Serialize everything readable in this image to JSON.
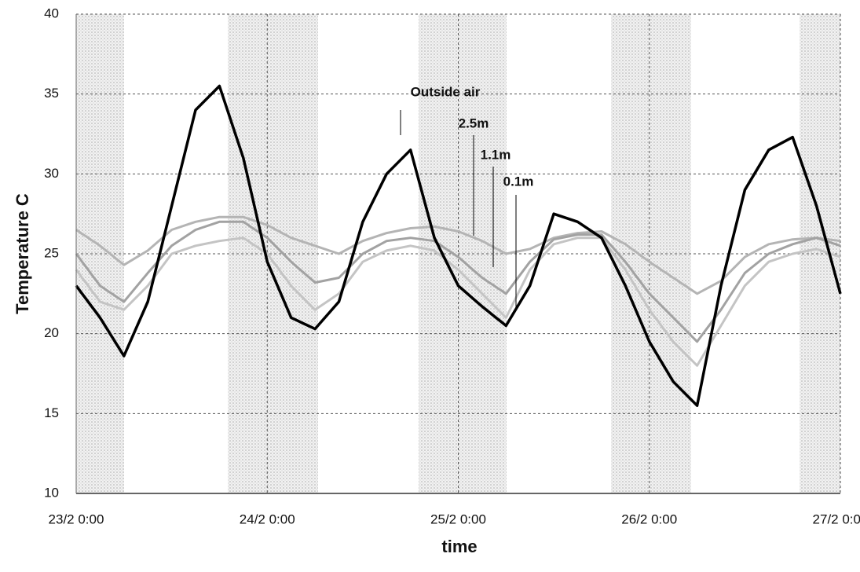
{
  "chart_data": {
    "type": "line",
    "x_label": "time",
    "y_label": "Temperature C",
    "categories": [
      "23/2 0:00",
      null,
      null,
      null,
      null,
      null,
      null,
      null,
      "24/2 0:00",
      null,
      null,
      null,
      null,
      null,
      null,
      null,
      "25/2 0:00",
      null,
      null,
      null,
      null,
      null,
      null,
      null,
      "26/2 0:00",
      null,
      null,
      null,
      null,
      null,
      null,
      null,
      "27/2 0:00"
    ],
    "series": [
      {
        "name": "Outside air",
        "color": "#000000",
        "values": [
          23,
          21,
          18.6,
          22,
          28,
          34,
          35.5,
          31,
          24.5,
          21,
          20.3,
          22,
          27,
          30,
          31.5,
          26,
          23,
          21.7,
          20.5,
          23,
          27.5,
          27,
          26,
          23,
          19.5,
          17,
          15.5,
          23,
          29,
          31.5,
          32.3,
          28,
          22.5
        ]
      },
      {
        "name": "2.5m",
        "color": "#b4b4b4",
        "values": [
          26.5,
          25.5,
          24.3,
          25.2,
          26.5,
          27,
          27.3,
          27.3,
          26.8,
          26,
          25.5,
          25,
          25.8,
          26.3,
          26.6,
          26.7,
          26.4,
          25.8,
          25,
          25.3,
          26,
          26.3,
          26.4,
          25.6,
          24.5,
          23.5,
          22.5,
          23.3,
          24.8,
          25.6,
          25.9,
          26,
          25.8
        ]
      },
      {
        "name": "1.1m",
        "color": "#a2a2a2",
        "values": [
          25,
          23,
          22,
          23.8,
          25.5,
          26.5,
          27,
          27,
          26,
          24.5,
          23.2,
          23.5,
          25,
          25.8,
          26,
          25.8,
          24.8,
          23.5,
          22.5,
          24.5,
          25.9,
          26.2,
          26.2,
          24.5,
          22.5,
          21,
          19.5,
          21.5,
          23.8,
          25,
          25.6,
          26,
          25.5
        ]
      },
      {
        "name": "0.1m",
        "color": "#c4c4c4",
        "values": [
          24,
          22,
          21.5,
          23,
          25,
          25.5,
          25.8,
          26,
          25,
          23,
          21.5,
          22.5,
          24.5,
          25.2,
          25.5,
          25.2,
          24,
          22.5,
          21,
          24,
          25.6,
          26,
          26,
          24,
          21.5,
          19.5,
          18,
          20.5,
          23,
          24.5,
          25,
          25.3,
          24.8
        ]
      }
    ],
    "ylim": [
      10,
      40
    ],
    "yticks": [
      10,
      15,
      20,
      25,
      30,
      35,
      40
    ],
    "grid": true
  }
}
